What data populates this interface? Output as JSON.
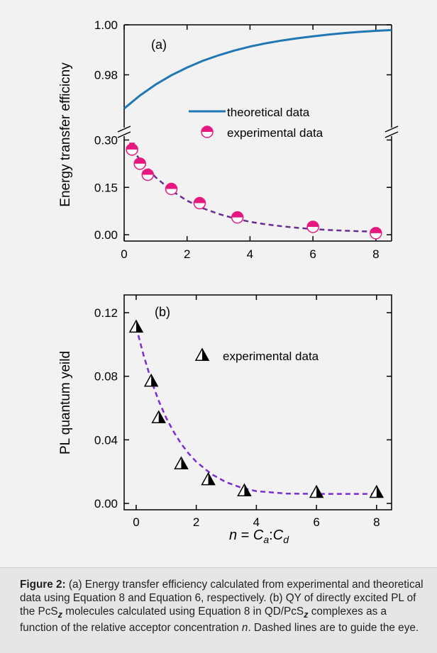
{
  "chart_data": [
    {
      "panel": "(a)",
      "type": "scatter",
      "ylabel": "Energy transfer efficicny",
      "xlim": [
        0,
        8.5
      ],
      "x_ticks": [
        "0",
        "2",
        "4",
        "6",
        "8"
      ],
      "upper_segment": {
        "ylim": [
          0.96,
          1.0
        ],
        "y_ticks": [
          "1.00",
          "0.98"
        ]
      },
      "lower_segment": {
        "ylim": [
          -0.02,
          0.31
        ],
        "y_ticks": [
          "0.30",
          "0.15",
          "0.00"
        ]
      },
      "series": [
        {
          "name": "theoretical data",
          "style": "solid-line",
          "color": "#1f77b4",
          "x": [
            0,
            0.5,
            1,
            1.5,
            2,
            2.5,
            3,
            3.5,
            4,
            4.5,
            5,
            5.5,
            6,
            6.5,
            7,
            7.5,
            8,
            8.5
          ],
          "values": [
            0.9665,
            0.9717,
            0.9761,
            0.9798,
            0.9829,
            0.9856,
            0.9878,
            0.9897,
            0.9913,
            0.9926,
            0.9937,
            0.9946,
            0.9954,
            0.9961,
            0.9967,
            0.9972,
            0.9976,
            0.9979
          ]
        },
        {
          "name": "experimental data",
          "style": "half-filled-circle",
          "color": "#e6187f",
          "x": [
            0.25,
            0.5,
            0.75,
            1.5,
            2.4,
            3.6,
            6.0,
            8.0
          ],
          "values": [
            0.27,
            0.225,
            0.19,
            0.145,
            0.1,
            0.055,
            0.025,
            0.005
          ],
          "error": [
            0.02,
            0.015,
            0.012,
            0.01,
            0.008,
            0.006,
            0.005,
            0.004
          ]
        },
        {
          "name": "",
          "style": "dashed-line",
          "color": "#6a2c91",
          "x": [
            0.25,
            0.5,
            1,
            1.5,
            2,
            2.5,
            3,
            3.5,
            4,
            4.5,
            5,
            5.5,
            6,
            6.5,
            7,
            7.5,
            8
          ],
          "values": [
            0.272,
            0.238,
            0.182,
            0.14,
            0.108,
            0.084,
            0.066,
            0.052,
            0.041,
            0.033,
            0.027,
            0.022,
            0.018,
            0.015,
            0.013,
            0.011,
            0.01
          ]
        }
      ]
    },
    {
      "panel": "(b)",
      "type": "scatter",
      "ylabel": "PL quantum yeild",
      "xlabel": "n = Ca:Cd",
      "xlim": [
        -0.4,
        8.5
      ],
      "ylim": [
        -0.004,
        0.12
      ],
      "x_ticks": [
        "0",
        "2",
        "4",
        "6",
        "8"
      ],
      "y_ticks": [
        "0.12",
        "0.08",
        "0.04",
        "0.00"
      ],
      "series": [
        {
          "name": "experimental data",
          "style": "half-filled-triangle",
          "color": "#000000",
          "x": [
            0,
            0.5,
            0.75,
            1.5,
            2.4,
            3.6,
            6.0,
            8.0
          ],
          "values": [
            0.111,
            0.077,
            0.054,
            0.025,
            0.015,
            0.008,
            0.007,
            0.007
          ],
          "error": [
            0.003,
            0.003,
            0.002,
            0.002,
            0.002,
            0.001,
            0.001,
            0.001
          ]
        },
        {
          "name": "",
          "style": "dashed-line",
          "color": "#7b2cd6",
          "x": [
            0,
            0.25,
            0.5,
            0.75,
            1,
            1.25,
            1.5,
            1.75,
            2,
            2.5,
            3,
            3.5,
            4,
            5,
            6,
            7,
            8
          ],
          "values": [
            0.111,
            0.093,
            0.0775,
            0.0645,
            0.0538,
            0.045,
            0.0375,
            0.0313,
            0.0262,
            0.0185,
            0.0133,
            0.0099,
            0.0077,
            0.0062,
            0.006,
            0.006,
            0.006
          ]
        }
      ]
    }
  ],
  "caption": {
    "label": "Figure 2:",
    "text_1": " (a) Energy transfer efficiency calculated from experimental and theoretical data using Equation 8 and Equation 6, respectively. (b) QY of directly excited PL of the PcS",
    "sub_1": "z",
    "text_2": " molecules calculated using Equation 8 in QD/PcS",
    "sub_2": "z",
    "text_3": " complexes as a function of the relative acceptor concentration ",
    "italic_n": "n",
    "text_4": ". Dashed lines are to guide the eye."
  }
}
